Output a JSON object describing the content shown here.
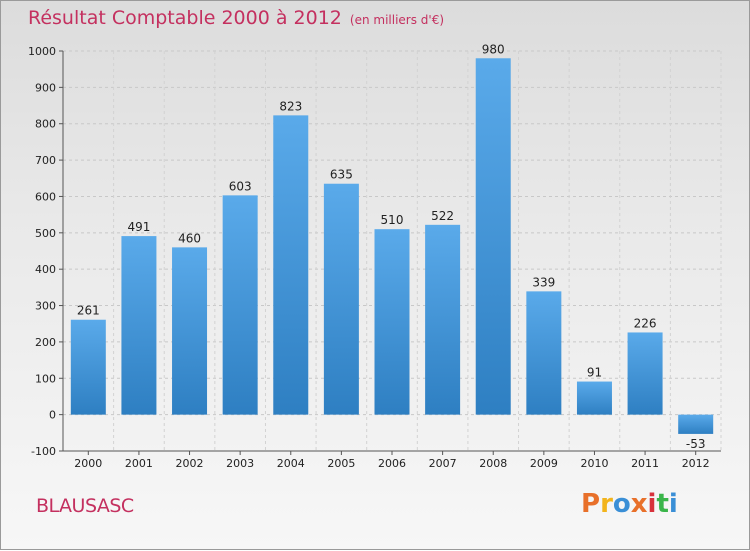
{
  "header": {
    "title": "Résultat Comptable 2000 à 2012",
    "subtitle": "(en milliers d'€)"
  },
  "footer": {
    "commune": "BLAUSASC",
    "logo_text": "Proxiti",
    "logo_colors": [
      "#e8702a",
      "#f2b41c",
      "#3a8fd6",
      "#e8702a",
      "#d8323c",
      "#3ab54a",
      "#3a8fd6"
    ]
  },
  "colors": {
    "bar_top": "#5aaaea",
    "bar_bottom": "#2e7fc2",
    "title": "#c4305f"
  },
  "chart_data": {
    "type": "bar",
    "title": "Résultat Comptable 2000 à 2012",
    "subtitle": "(en milliers d'€)",
    "xlabel": "",
    "ylabel": "",
    "categories": [
      "2000",
      "2001",
      "2002",
      "2003",
      "2004",
      "2005",
      "2006",
      "2007",
      "2008",
      "2009",
      "2010",
      "2011",
      "2012"
    ],
    "values": [
      261,
      491,
      460,
      603,
      823,
      635,
      510,
      522,
      980,
      339,
      91,
      226,
      -53
    ],
    "data_labels": [
      "261",
      "491",
      "460",
      "603",
      "823",
      "635",
      "510",
      "522",
      "980",
      "339",
      "91",
      "226",
      "-53"
    ],
    "ylim": [
      -100,
      1000
    ],
    "yticks": [
      -100,
      0,
      100,
      200,
      300,
      400,
      500,
      600,
      700,
      800,
      900,
      1000
    ],
    "ytick_labels": [
      "-100",
      "0",
      "100",
      "200",
      "300",
      "400",
      "500",
      "600",
      "700",
      "800",
      "900",
      "1000"
    ],
    "grid": "horizontal dashed"
  }
}
